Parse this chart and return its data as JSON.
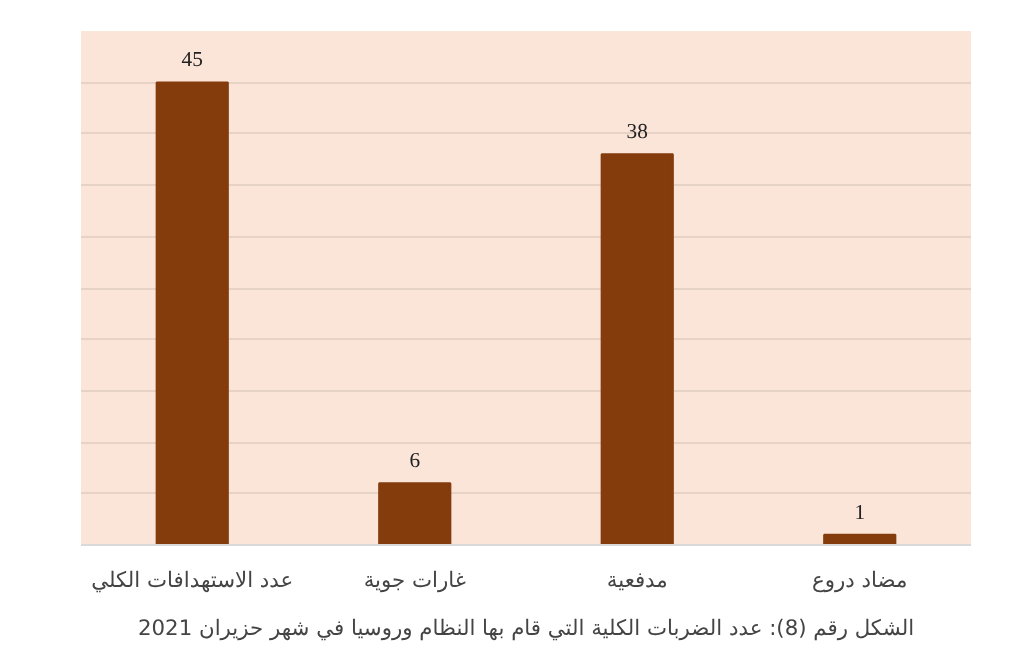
{
  "chart_data": {
    "type": "bar",
    "categories": [
      "عدد الاستهدافات الكلي",
      "غارات جوية",
      "مدفعية",
      "مضاد دروع"
    ],
    "values": [
      45,
      6,
      38,
      1
    ],
    "color": "#843c0c",
    "ylim": [
      0,
      50
    ],
    "yticks": [
      {
        "value": 0,
        "label": null
      },
      {
        "value": 5,
        "label": null
      },
      {
        "value": 10,
        "label": null
      },
      {
        "value": 15,
        "label": null
      },
      {
        "value": 20,
        "label": null
      },
      {
        "value": 25,
        "label": null
      },
      {
        "value": 30,
        "label": null
      },
      {
        "value": 35,
        "label": null
      },
      {
        "value": 40,
        "label": null
      },
      {
        "value": 45,
        "label": null
      },
      {
        "value": 50,
        "label": null
      }
    ],
    "tick_labels": "x",
    "grid": "y",
    "data_labels": true,
    "annotations": [
      "الشكل رقم (8): عدد الضربات الكلية التي قام بها النظام وروسيا في شهر حزيران 2021"
    ]
  }
}
